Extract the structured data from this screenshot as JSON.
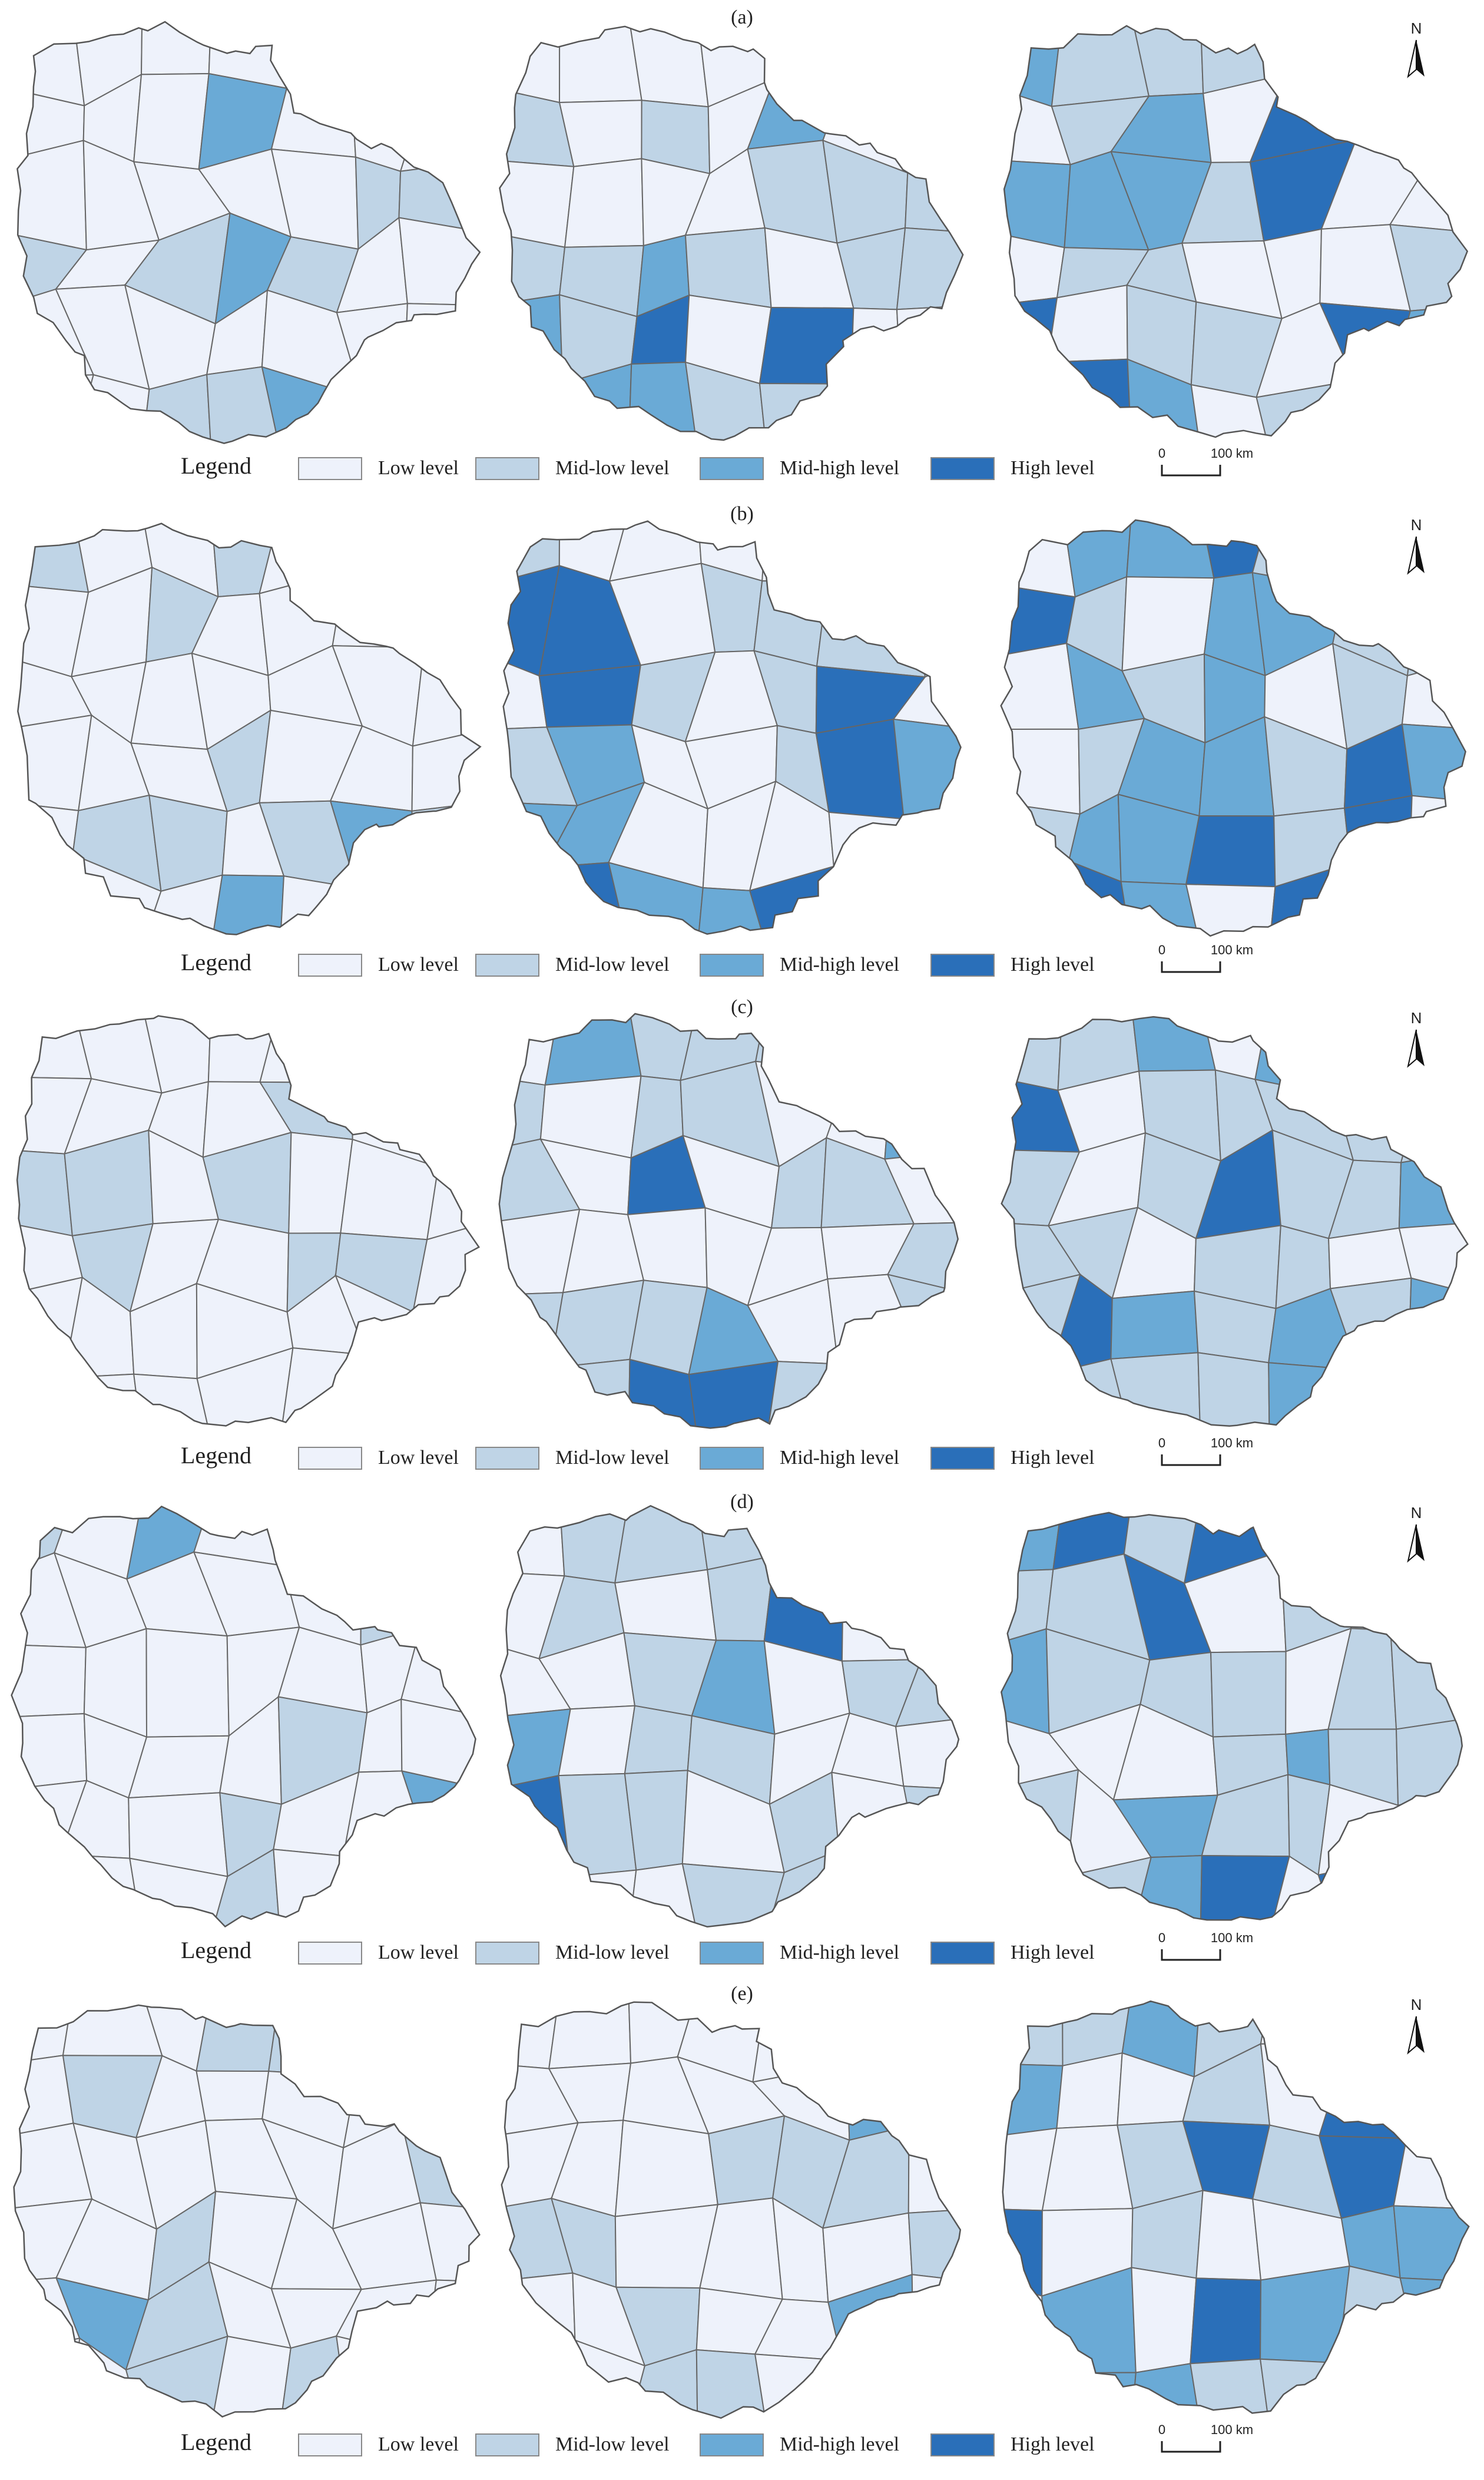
{
  "panels": [
    {
      "label": "(a)"
    },
    {
      "label": "(b)"
    },
    {
      "label": "(c)"
    },
    {
      "label": "(d)"
    },
    {
      "label": "(e)"
    }
  ],
  "legend": {
    "title": "Legend",
    "classes": [
      {
        "label": "Low level",
        "color": "#eef2fb"
      },
      {
        "label": "Mid-low level",
        "color": "#bfd4e6"
      },
      {
        "label": "Mid-high level",
        "color": "#6aaad6"
      },
      {
        "label": "High level",
        "color": "#2a6fb9"
      }
    ]
  },
  "scale_bar": {
    "start": "0",
    "end": "100 km"
  },
  "north_arrow": "N"
}
